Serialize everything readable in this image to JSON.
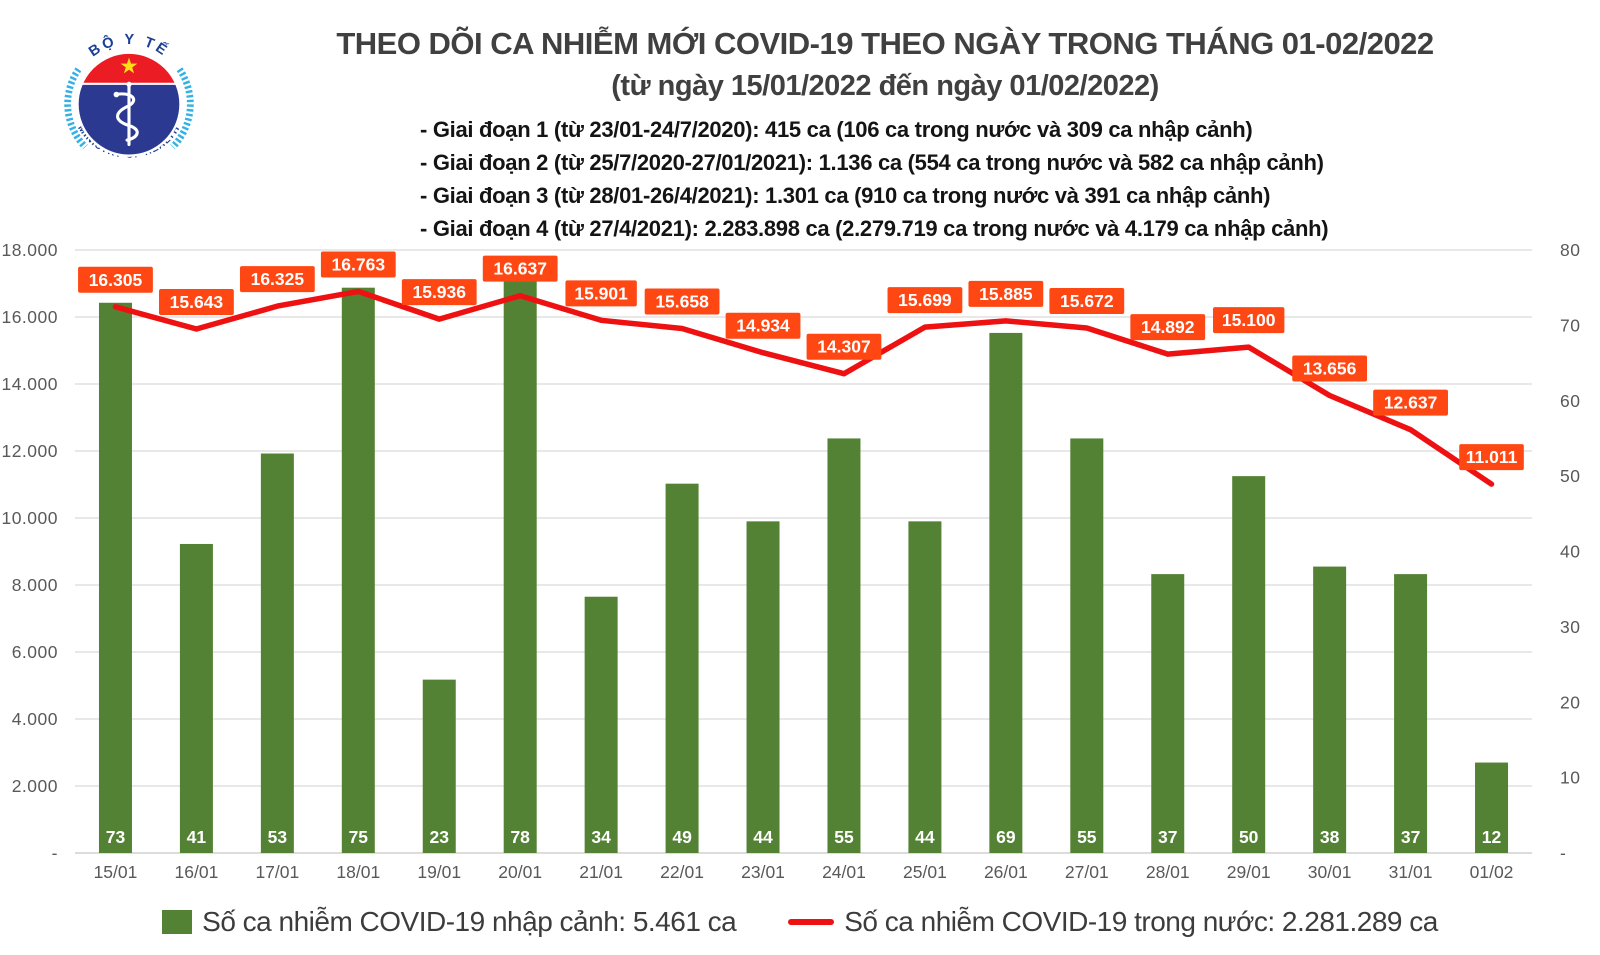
{
  "logo": {
    "top_text": "BỘ Y TẾ",
    "bottom_text": "MINISTRY OF HEALTH"
  },
  "header": {
    "title": "THEO DÕI CA NHIỄM MỚI COVID-19 THEO NGÀY TRONG THÁNG 01-02/2022",
    "subtitle": "(từ ngày 15/01/2022 đến ngày 01/02/2022)",
    "phases": [
      "- Giai đoạn 1 (từ 23/01-24/7/2020): 415 ca (106 ca trong nước và 309 ca nhập cảnh)",
      "- Giai đoạn 2 (từ 25/7/2020-27/01/2021): 1.136 ca (554 ca trong nước và 582 ca nhập cảnh)",
      "- Giai đoạn 3 (từ 28/01-26/4/2021): 1.301 ca (910 ca trong nước và 391 ca nhập cảnh)",
      "- Giai đoạn 4 (từ 27/4/2021): 2.283.898 ca (2.279.719 ca trong nước và 4.179 ca nhập cảnh)"
    ]
  },
  "chart_data": {
    "type": "combo-bar-line",
    "categories": [
      "15/01",
      "16/01",
      "17/01",
      "18/01",
      "19/01",
      "20/01",
      "21/01",
      "22/01",
      "23/01",
      "24/01",
      "25/01",
      "26/01",
      "27/01",
      "28/01",
      "29/01",
      "30/01",
      "31/01",
      "01/02"
    ],
    "series": [
      {
        "name": "Số ca nhiễm COVID-19 nhập cảnh",
        "type": "bar",
        "axis": "right",
        "values": [
          73,
          41,
          53,
          75,
          23,
          78,
          34,
          49,
          44,
          55,
          44,
          69,
          55,
          37,
          50,
          38,
          37,
          12
        ]
      },
      {
        "name": "Số ca nhiễm COVID-19 trong nước",
        "type": "line",
        "axis": "left",
        "values": [
          16305,
          15643,
          16325,
          16763,
          15936,
          16637,
          15901,
          15658,
          14934,
          14307,
          15699,
          15885,
          15672,
          14892,
          15100,
          13656,
          12637,
          11011
        ],
        "labels": [
          "16.305",
          "15.643",
          "16.325",
          "16.763",
          "15.936",
          "16.637",
          "15.901",
          "15.658",
          "14.934",
          "14.307",
          "15.699",
          "15.885",
          "15.672",
          "14.892",
          "15.100",
          "13.656",
          "12.637",
          "11.011"
        ]
      }
    ],
    "left_axis": {
      "min": 0,
      "max": 18000,
      "tick_labels": [
        "18.000",
        "16.000",
        "14.000",
        "12.000",
        "10.000",
        "8.000",
        "6.000",
        "4.000",
        "2.000",
        "-"
      ]
    },
    "right_axis": {
      "min": 0,
      "max": 80,
      "tick_labels": [
        "80",
        "70",
        "60",
        "50",
        "40",
        "30",
        "20",
        "10",
        "-"
      ]
    },
    "grid": true,
    "legend_position": "bottom",
    "title": "THEO DÕI CA NHIỄM MỚI COVID-19 THEO NGÀY TRONG THÁNG 01-02/2022"
  },
  "legend": {
    "bar": "Số ca nhiễm COVID-19 nhập cảnh: 5.461 ca",
    "line": "Số ca nhiễm COVID-19 trong nước: 2.281.289 ca"
  },
  "colors": {
    "bar": "#548235",
    "line": "#ee1111",
    "label_bg": "#FF4713",
    "label_text": "#ffffff",
    "axis_text": "#595959",
    "grid": "#dadada",
    "axis_line": "#c8c8c8",
    "logo_red": "#EC1C24",
    "logo_blue": "#2B3990",
    "logo_lightblue": "#33B1E4",
    "logo_star": "#FFDE17",
    "logo_text": "#1B3F94"
  }
}
